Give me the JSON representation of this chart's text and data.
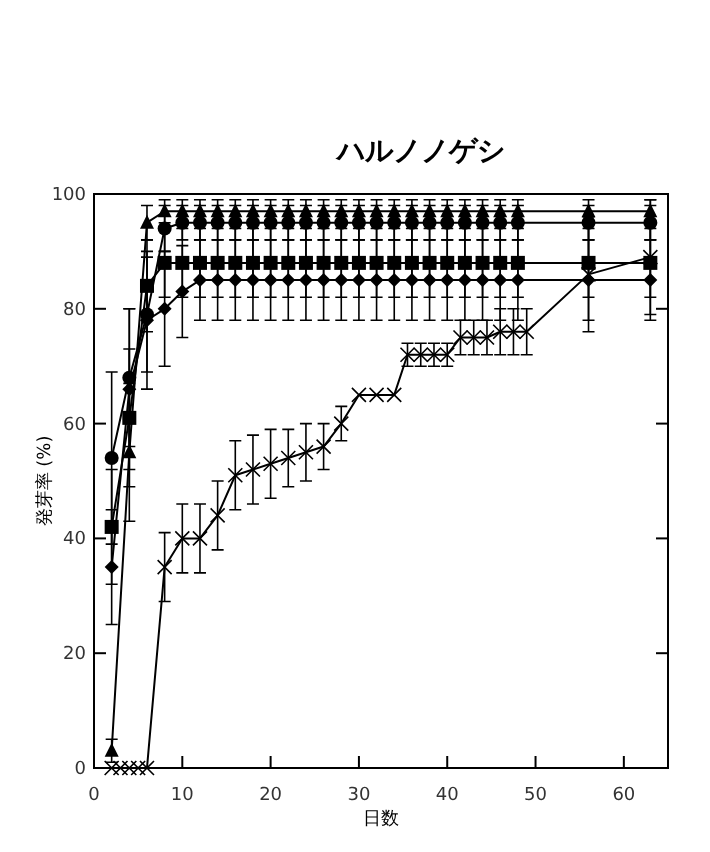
{
  "chart_data": {
    "type": "line",
    "title": "ハルノノゲシ",
    "xlabel": "日数",
    "ylabel": "発芽率 (%)",
    "xlim": [
      0,
      65
    ],
    "ylim": [
      0,
      100
    ],
    "xticks": [
      0,
      10,
      20,
      30,
      40,
      50,
      60
    ],
    "yticks": [
      0,
      20,
      40,
      60,
      80,
      100
    ],
    "grid": false,
    "line_style": "solid",
    "series": [
      {
        "color": "#000000",
        "marker": "triangle",
        "x": [
          2,
          4,
          6,
          8,
          10,
          12,
          14,
          16,
          18,
          20,
          22,
          24,
          26,
          28,
          30,
          32,
          34,
          36,
          38,
          40,
          42,
          44,
          46,
          48,
          56,
          63
        ],
        "values": [
          3,
          55,
          95,
          97,
          97,
          97,
          97,
          97,
          97,
          97,
          97,
          97,
          97,
          97,
          97,
          97,
          97,
          97,
          97,
          97,
          97,
          97,
          97,
          97,
          97,
          97
        ],
        "errors": [
          2,
          12,
          3,
          2,
          2,
          2,
          2,
          2,
          2,
          2,
          2,
          2,
          2,
          2,
          2,
          2,
          2,
          2,
          2,
          2,
          2,
          2,
          2,
          2,
          2,
          2
        ]
      },
      {
        "color": "#000000",
        "marker": "circle",
        "x": [
          2,
          4,
          6,
          8,
          10,
          12,
          14,
          16,
          18,
          20,
          22,
          24,
          26,
          28,
          30,
          32,
          34,
          36,
          38,
          40,
          42,
          44,
          46,
          48,
          56,
          63
        ],
        "values": [
          54,
          68,
          79,
          94,
          95,
          95,
          95,
          95,
          95,
          95,
          95,
          95,
          95,
          95,
          95,
          95,
          95,
          95,
          95,
          95,
          95,
          95,
          95,
          95,
          95,
          95
        ],
        "errors": [
          15,
          12,
          10,
          4,
          3,
          3,
          3,
          3,
          3,
          3,
          3,
          3,
          3,
          3,
          3,
          3,
          3,
          3,
          3,
          3,
          3,
          3,
          3,
          3,
          3,
          3
        ]
      },
      {
        "color": "#000000",
        "marker": "square",
        "x": [
          2,
          4,
          6,
          8,
          10,
          12,
          14,
          16,
          18,
          20,
          22,
          24,
          26,
          28,
          30,
          32,
          34,
          36,
          38,
          40,
          42,
          44,
          46,
          48,
          56,
          63
        ],
        "values": [
          42,
          61,
          84,
          88,
          88,
          88,
          88,
          88,
          88,
          88,
          88,
          88,
          88,
          88,
          88,
          88,
          88,
          88,
          88,
          88,
          88,
          88,
          88,
          88,
          88,
          88
        ],
        "errors": [
          10,
          12,
          8,
          6,
          6,
          6,
          6,
          6,
          6,
          6,
          6,
          6,
          6,
          6,
          6,
          6,
          6,
          6,
          6,
          6,
          6,
          6,
          6,
          6,
          6,
          6
        ]
      },
      {
        "color": "#000000",
        "marker": "diamond",
        "x": [
          2,
          4,
          6,
          8,
          10,
          12,
          14,
          16,
          18,
          20,
          22,
          24,
          26,
          28,
          30,
          32,
          34,
          36,
          38,
          40,
          42,
          44,
          46,
          48,
          56,
          63
        ],
        "values": [
          35,
          66,
          78,
          80,
          83,
          85,
          85,
          85,
          85,
          85,
          85,
          85,
          85,
          85,
          85,
          85,
          85,
          85,
          85,
          85,
          85,
          85,
          85,
          85,
          85,
          85
        ],
        "errors": [
          10,
          14,
          12,
          10,
          8,
          7,
          7,
          7,
          7,
          7,
          7,
          7,
          7,
          7,
          7,
          7,
          7,
          7,
          7,
          7,
          7,
          7,
          7,
          7,
          7,
          7
        ]
      },
      {
        "color": "#000000",
        "marker": "cross",
        "x": [
          2,
          3,
          4,
          5,
          6,
          8,
          10,
          12,
          14,
          16,
          18,
          20,
          22,
          24,
          26,
          28,
          30,
          32,
          34,
          35.5,
          37,
          38.5,
          40,
          41.5,
          43,
          44.5,
          46,
          47.5,
          49,
          56,
          63
        ],
        "values": [
          0,
          0,
          0,
          0,
          0,
          35,
          40,
          40,
          44,
          51,
          52,
          53,
          54,
          55,
          56,
          60,
          65,
          65,
          65,
          72,
          72,
          72,
          72,
          75,
          75,
          75,
          76,
          76,
          76,
          86,
          89
        ],
        "errors": [
          null,
          null,
          null,
          null,
          null,
          6,
          6,
          6,
          6,
          6,
          6,
          6,
          5,
          5,
          4,
          3,
          null,
          null,
          null,
          2,
          2,
          2,
          2,
          3,
          3,
          3,
          4,
          4,
          4,
          10,
          10
        ]
      }
    ]
  }
}
